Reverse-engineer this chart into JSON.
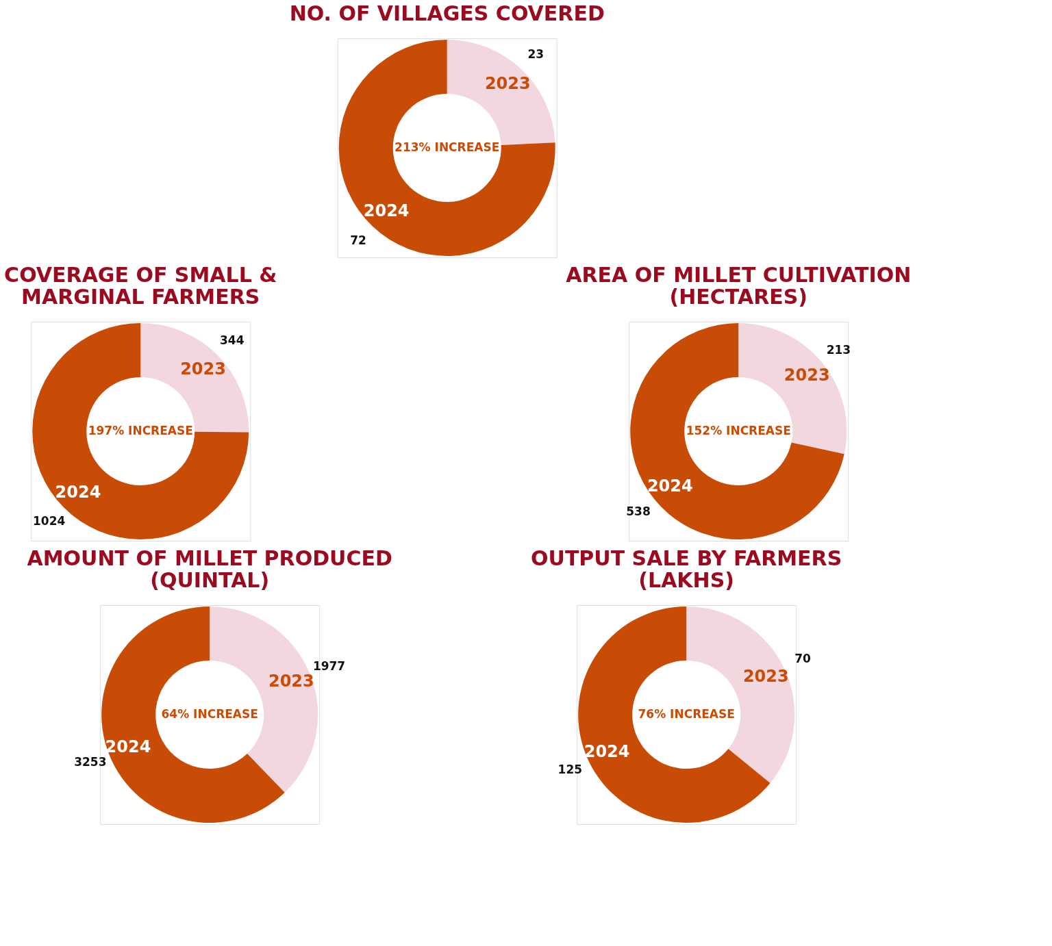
{
  "chart_data": [
    {
      "type": "donut",
      "title": "NO. OF VILLAGES COVERED",
      "categories": [
        "2023",
        "2024"
      ],
      "values": [
        23,
        72
      ],
      "colors": [
        "#f2d7de",
        "#c84c05"
      ],
      "data_labels": true,
      "annotations": [
        "213% INCREASE"
      ]
    },
    {
      "type": "donut",
      "title": "COVERAGE OF SMALL & MARGINAL FARMERS",
      "categories": [
        "2023",
        "2024"
      ],
      "values": [
        344,
        1024
      ],
      "colors": [
        "#f2d7de",
        "#c84c05"
      ],
      "data_labels": true,
      "annotations": [
        "197% INCREASE"
      ]
    },
    {
      "type": "donut",
      "title": "AREA OF MILLET CULTIVATION (HECTARES)",
      "categories": [
        "2023",
        "2024"
      ],
      "values": [
        213,
        538
      ],
      "colors": [
        "#f2d7de",
        "#c84c05"
      ],
      "data_labels": true,
      "annotations": [
        "152% INCREASE"
      ]
    },
    {
      "type": "donut",
      "title": "AMOUNT OF MILLET PRODUCED (QUINTAL)",
      "categories": [
        "2023",
        "2024"
      ],
      "values": [
        1977,
        3253
      ],
      "colors": [
        "#f2d7de",
        "#c84c05"
      ],
      "data_labels": true,
      "annotations": [
        "64% INCREASE"
      ]
    },
    {
      "type": "donut",
      "title": "OUTPUT SALE BY FARMERS (LAKHS)",
      "categories": [
        "2023",
        "2024"
      ],
      "values": [
        70,
        125
      ],
      "colors": [
        "#f2d7de",
        "#c84c05"
      ],
      "data_labels": true,
      "annotations": [
        "76% INCREASE"
      ]
    }
  ]
}
